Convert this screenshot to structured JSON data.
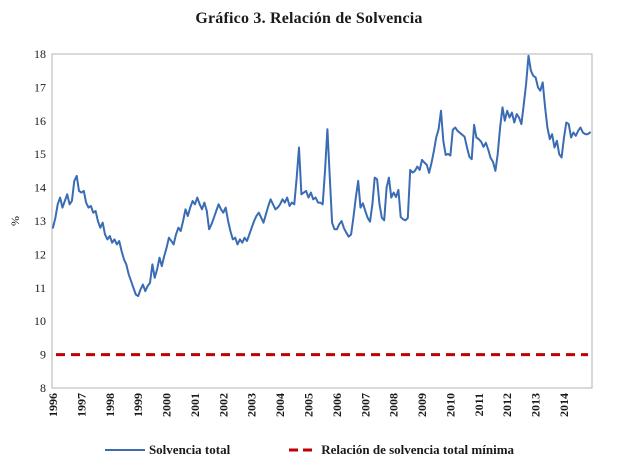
{
  "figure": {
    "title": "Gráfico 3. Relación de Solvencia"
  },
  "legend": {
    "items": [
      {
        "label": "Solvencia total",
        "color": "#3a6cb4",
        "style": "solid"
      },
      {
        "label": "Relación de solvencia total mínima",
        "color": "#c00000",
        "style": "dashed"
      }
    ]
  },
  "chart_data": {
    "type": "line",
    "title": "Gráfico 3. Relación de Solvencia",
    "xlabel": "",
    "ylabel": "%",
    "ylim": [
      8,
      18
    ],
    "yticks": [
      8,
      9,
      10,
      11,
      12,
      13,
      14,
      15,
      16,
      17,
      18
    ],
    "x_start_year": 1996,
    "x_tick_years": [
      1996,
      1997,
      1998,
      1999,
      2000,
      2001,
      2002,
      2003,
      2004,
      2005,
      2006,
      2007,
      2008,
      2009,
      2010,
      2011,
      2012,
      2013,
      2014
    ],
    "frequency": "monthly",
    "grid": false,
    "legend_position": "bottom",
    "frame_color": "#b3b3b3",
    "series": [
      {
        "name": "Solvencia total",
        "color": "#3a6cb4",
        "line_style": "solid",
        "line_width": 2,
        "values": [
          12.8,
          13.1,
          13.5,
          13.7,
          13.4,
          13.6,
          13.8,
          13.5,
          13.6,
          14.2,
          14.35,
          13.9,
          13.85,
          13.9,
          13.55,
          13.4,
          13.45,
          13.25,
          13.3,
          13.0,
          12.8,
          12.95,
          12.6,
          12.45,
          12.55,
          12.35,
          12.45,
          12.3,
          12.4,
          12.1,
          11.85,
          11.7,
          11.4,
          11.2,
          11.0,
          10.8,
          10.75,
          10.95,
          11.1,
          10.9,
          11.05,
          11.15,
          11.7,
          11.3,
          11.55,
          11.9,
          11.65,
          11.95,
          12.2,
          12.5,
          12.4,
          12.3,
          12.6,
          12.8,
          12.7,
          13.0,
          13.35,
          13.15,
          13.4,
          13.6,
          13.5,
          13.7,
          13.5,
          13.35,
          13.55,
          13.3,
          12.75,
          12.9,
          13.1,
          13.3,
          13.5,
          13.35,
          13.25,
          13.4,
          13.0,
          12.7,
          12.45,
          12.5,
          12.3,
          12.45,
          12.35,
          12.5,
          12.4,
          12.6,
          12.8,
          13.0,
          13.15,
          13.25,
          13.1,
          12.95,
          13.2,
          13.45,
          13.65,
          13.5,
          13.35,
          13.4,
          13.5,
          13.65,
          13.55,
          13.7,
          13.45,
          13.55,
          13.5,
          14.3,
          15.2,
          13.8,
          13.85,
          13.9,
          13.7,
          13.85,
          13.65,
          13.7,
          13.55,
          13.55,
          13.5,
          14.5,
          15.75,
          14.3,
          12.95,
          12.75,
          12.75,
          12.9,
          13.0,
          12.78,
          12.65,
          12.53,
          12.6,
          13.1,
          13.7,
          14.2,
          13.4,
          13.53,
          13.3,
          13.1,
          12.98,
          13.5,
          14.3,
          14.25,
          13.5,
          13.1,
          13.02,
          14.0,
          14.3,
          13.7,
          13.85,
          13.72,
          13.93,
          13.12,
          13.05,
          13.02,
          13.09,
          14.53,
          14.45,
          14.5,
          14.63,
          14.53,
          14.83,
          14.75,
          14.68,
          14.44,
          14.74,
          15.1,
          15.5,
          15.75,
          16.3,
          15.4,
          14.98,
          15.01,
          14.96,
          15.73,
          15.8,
          15.7,
          15.64,
          15.58,
          15.52,
          15.2,
          14.92,
          14.85,
          15.88,
          15.5,
          15.45,
          15.37,
          15.22,
          15.34,
          15.13,
          14.89,
          14.77,
          14.5,
          15.0,
          15.8,
          16.4,
          16.0,
          16.3,
          16.1,
          16.25,
          15.95,
          16.2,
          16.1,
          15.9,
          16.5,
          17.1,
          17.95,
          17.5,
          17.35,
          17.3,
          17.0,
          16.9,
          17.15,
          16.4,
          15.8,
          15.45,
          15.6,
          15.2,
          15.4,
          15.0,
          14.9,
          15.5,
          15.95,
          15.9,
          15.5,
          15.65,
          15.55,
          15.7,
          15.8,
          15.65,
          15.6,
          15.6,
          15.65
        ]
      },
      {
        "name": "Relación de solvencia total mínima",
        "color": "#c00000",
        "line_style": "dashed",
        "line_width": 3,
        "constant_value": 9
      }
    ]
  }
}
